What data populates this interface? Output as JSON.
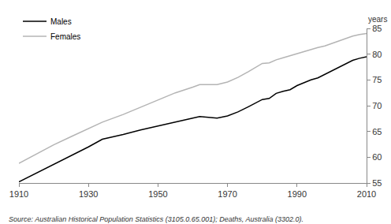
{
  "chart_data": {
    "type": "line",
    "ylabel": "years",
    "annotations": [
      "Source: Australian Historical Population Statistics (3105.0.65.001); Deaths, Australia (3302.0)."
    ],
    "x": [
      1910,
      1915,
      1920,
      1925,
      1930,
      1934,
      1940,
      1945,
      1950,
      1955,
      1960,
      1962,
      1965,
      1967,
      1970,
      1973,
      1976,
      1980,
      1982,
      1984,
      1986,
      1988,
      1990,
      1992,
      1994,
      1996,
      1998,
      2000,
      2002,
      2004,
      2006,
      2008,
      2010
    ],
    "series": [
      {
        "name": "Males",
        "color": "#000000",
        "values": [
          55.2,
          56.9,
          58.6,
          60.3,
          62.0,
          63.5,
          64.4,
          65.3,
          66.1,
          66.8,
          67.6,
          67.9,
          67.7,
          67.6,
          68.0,
          68.8,
          69.8,
          71.2,
          71.4,
          72.4,
          72.8,
          73.1,
          73.9,
          74.5,
          75.0,
          75.4,
          76.1,
          76.8,
          77.5,
          78.2,
          78.8,
          79.2,
          79.5
        ]
      },
      {
        "name": "Females",
        "color": "#b4b4b4",
        "values": [
          58.8,
          60.6,
          62.4,
          64.0,
          65.5,
          66.8,
          68.3,
          69.7,
          71.1,
          72.5,
          73.6,
          74.1,
          74.1,
          74.1,
          74.6,
          75.5,
          76.6,
          78.2,
          78.3,
          78.9,
          79.3,
          79.7,
          80.1,
          80.6,
          80.9,
          81.3,
          81.6,
          82.1,
          82.6,
          83.1,
          83.5,
          83.8,
          84.0
        ]
      }
    ],
    "xlim": [
      1910,
      2010
    ],
    "xticks": [
      1910,
      1930,
      1950,
      1970,
      1990,
      2010
    ],
    "ylim": [
      55,
      85
    ],
    "yticks": [
      55,
      60,
      65,
      70,
      75,
      80,
      85
    ],
    "grid": false,
    "legend": "top left"
  }
}
